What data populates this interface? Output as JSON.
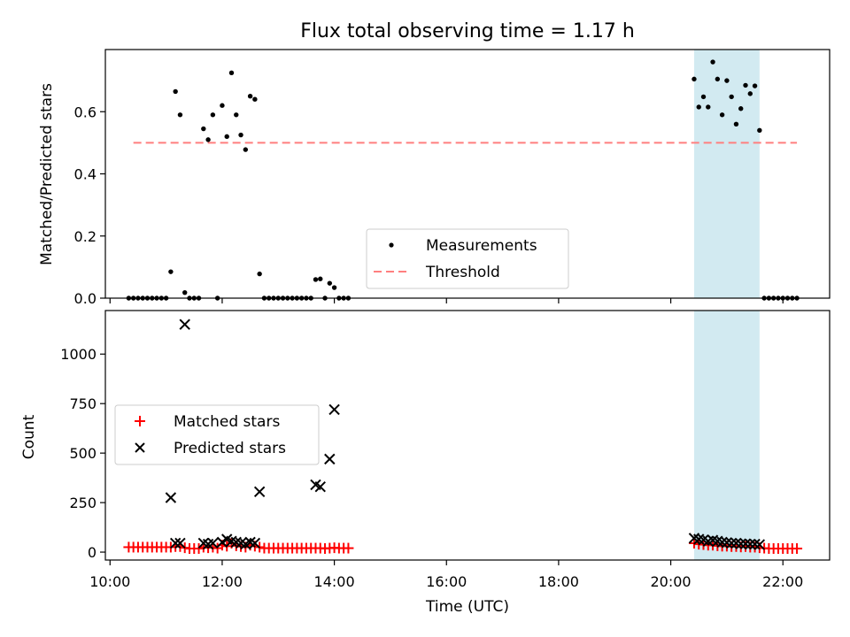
{
  "chart_data": {
    "title": "Flux total observing time = 1.17 h",
    "shaded_interval": {
      "start": "20:25",
      "end": "21:35",
      "color": "#add8e6"
    },
    "xlabel": "Time (UTC)",
    "xlim": [
      "09:55",
      "22:50"
    ],
    "x_ticks": [
      "10:00",
      "12:00",
      "14:00",
      "16:00",
      "18:00",
      "20:00",
      "22:00"
    ],
    "top": {
      "type": "scatter",
      "ylabel": "Matched/Predicted stars",
      "ylim": [
        0,
        0.8
      ],
      "y_ticks": [
        "0.0",
        "0.2",
        "0.4",
        "0.6"
      ],
      "threshold": {
        "name": "Threshold",
        "value": 0.5,
        "start": "10:25",
        "end": "22:15",
        "color": "#ff7f7f"
      },
      "series": [
        {
          "name": "Measurements",
          "color": "#000000",
          "points": [
            [
              "10:20",
              0
            ],
            [
              "10:25",
              0
            ],
            [
              "10:30",
              0
            ],
            [
              "10:35",
              0
            ],
            [
              "10:40",
              0
            ],
            [
              "10:45",
              0
            ],
            [
              "10:50",
              0
            ],
            [
              "10:55",
              0
            ],
            [
              "11:00",
              0
            ],
            [
              "11:05",
              0.085
            ],
            [
              "11:10",
              0.665
            ],
            [
              "11:15",
              0.59
            ],
            [
              "11:20",
              0.018
            ],
            [
              "11:25",
              0
            ],
            [
              "11:30",
              0
            ],
            [
              "11:35",
              0
            ],
            [
              "11:40",
              0.545
            ],
            [
              "11:45",
              0.51
            ],
            [
              "11:50",
              0.59
            ],
            [
              "11:55",
              0
            ],
            [
              "12:00",
              0.62
            ],
            [
              "12:05",
              0.52
            ],
            [
              "12:10",
              0.725
            ],
            [
              "12:15",
              0.59
            ],
            [
              "12:20",
              0.525
            ],
            [
              "12:25",
              0.478
            ],
            [
              "12:30",
              0.65
            ],
            [
              "12:35",
              0.64
            ],
            [
              "12:40",
              0.078
            ],
            [
              "12:45",
              0
            ],
            [
              "12:50",
              0
            ],
            [
              "12:55",
              0
            ],
            [
              "13:00",
              0
            ],
            [
              "13:05",
              0
            ],
            [
              "13:10",
              0
            ],
            [
              "13:15",
              0
            ],
            [
              "13:20",
              0
            ],
            [
              "13:25",
              0
            ],
            [
              "13:30",
              0
            ],
            [
              "13:35",
              0
            ],
            [
              "13:40",
              0.06
            ],
            [
              "13:45",
              0.062
            ],
            [
              "13:50",
              0
            ],
            [
              "13:55",
              0.048
            ],
            [
              "14:00",
              0.034
            ],
            [
              "14:05",
              0
            ],
            [
              "14:10",
              0
            ],
            [
              "14:15",
              0
            ],
            [
              "20:25",
              0.705
            ],
            [
              "20:30",
              0.615
            ],
            [
              "20:35",
              0.648
            ],
            [
              "20:40",
              0.615
            ],
            [
              "20:45",
              0.76
            ],
            [
              "20:50",
              0.705
            ],
            [
              "20:55",
              0.59
            ],
            [
              "21:00",
              0.7
            ],
            [
              "21:05",
              0.648
            ],
            [
              "21:10",
              0.56
            ],
            [
              "21:15",
              0.61
            ],
            [
              "21:20",
              0.685
            ],
            [
              "21:25",
              0.658
            ],
            [
              "21:30",
              0.683
            ],
            [
              "21:35",
              0.54
            ],
            [
              "21:40",
              0
            ],
            [
              "21:45",
              0
            ],
            [
              "21:50",
              0
            ],
            [
              "21:55",
              0
            ],
            [
              "22:00",
              0
            ],
            [
              "22:05",
              0
            ],
            [
              "22:10",
              0
            ],
            [
              "22:15",
              0
            ]
          ]
        }
      ],
      "legend": {
        "placement": "lower-center",
        "entries": [
          "Measurements",
          "Threshold"
        ]
      }
    },
    "bottom": {
      "type": "scatter",
      "ylabel": "Count",
      "ylim": [
        -40,
        1220
      ],
      "y_ticks": [
        "0",
        "250",
        "500",
        "750",
        "1000"
      ],
      "series": [
        {
          "name": "Matched stars",
          "marker": "+",
          "color": "#ff0000",
          "points": [
            [
              "10:20",
              25
            ],
            [
              "10:25",
              25
            ],
            [
              "10:30",
              25
            ],
            [
              "10:35",
              25
            ],
            [
              "10:40",
              25
            ],
            [
              "10:45",
              25
            ],
            [
              "10:50",
              25
            ],
            [
              "10:55",
              25
            ],
            [
              "11:00",
              25
            ],
            [
              "11:05",
              25
            ],
            [
              "11:10",
              28
            ],
            [
              "11:15",
              28
            ],
            [
              "11:20",
              22
            ],
            [
              "11:25",
              18
            ],
            [
              "11:30",
              18
            ],
            [
              "11:35",
              18
            ],
            [
              "11:40",
              25
            ],
            [
              "11:45",
              22
            ],
            [
              "11:50",
              25
            ],
            [
              "11:55",
              20
            ],
            [
              "12:00",
              35
            ],
            [
              "12:05",
              30
            ],
            [
              "12:10",
              45
            ],
            [
              "12:15",
              32
            ],
            [
              "12:20",
              28
            ],
            [
              "12:25",
              25
            ],
            [
              "12:30",
              35
            ],
            [
              "12:35",
              30
            ],
            [
              "12:40",
              25
            ],
            [
              "12:45",
              20
            ],
            [
              "12:50",
              20
            ],
            [
              "12:55",
              20
            ],
            [
              "13:00",
              20
            ],
            [
              "13:05",
              20
            ],
            [
              "13:10",
              20
            ],
            [
              "13:15",
              20
            ],
            [
              "13:20",
              20
            ],
            [
              "13:25",
              20
            ],
            [
              "13:30",
              20
            ],
            [
              "13:35",
              20
            ],
            [
              "13:40",
              20
            ],
            [
              "13:45",
              20
            ],
            [
              "13:50",
              18
            ],
            [
              "13:55",
              20
            ],
            [
              "14:00",
              22
            ],
            [
              "14:05",
              20
            ],
            [
              "14:10",
              20
            ],
            [
              "14:15",
              20
            ],
            [
              "20:25",
              45
            ],
            [
              "20:30",
              40
            ],
            [
              "20:35",
              38
            ],
            [
              "20:40",
              35
            ],
            [
              "20:45",
              35
            ],
            [
              "20:50",
              32
            ],
            [
              "20:55",
              30
            ],
            [
              "21:00",
              30
            ],
            [
              "21:05",
              28
            ],
            [
              "21:10",
              28
            ],
            [
              "21:15",
              26
            ],
            [
              "21:20",
              28
            ],
            [
              "21:25",
              25
            ],
            [
              "21:30",
              25
            ],
            [
              "21:35",
              22
            ],
            [
              "21:40",
              20
            ],
            [
              "21:45",
              18
            ],
            [
              "21:50",
              18
            ],
            [
              "21:55",
              18
            ],
            [
              "22:00",
              18
            ],
            [
              "22:05",
              18
            ],
            [
              "22:10",
              18
            ],
            [
              "22:15",
              18
            ]
          ]
        },
        {
          "name": "Predicted stars",
          "marker": "x",
          "color": "#000000",
          "points": [
            [
              "11:05",
              275
            ],
            [
              "11:10",
              45
            ],
            [
              "11:15",
              45
            ],
            [
              "11:20",
              1150
            ],
            [
              "11:40",
              45
            ],
            [
              "11:45",
              40
            ],
            [
              "11:50",
              45
            ],
            [
              "12:00",
              50
            ],
            [
              "12:05",
              65
            ],
            [
              "12:10",
              55
            ],
            [
              "12:15",
              50
            ],
            [
              "12:20",
              45
            ],
            [
              "12:25",
              40
            ],
            [
              "12:30",
              50
            ],
            [
              "12:35",
              45
            ],
            [
              "12:40",
              305
            ],
            [
              "13:40",
              340
            ],
            [
              "13:45",
              330
            ],
            [
              "13:55",
              470
            ],
            [
              "14:00",
              720
            ],
            [
              "20:25",
              70
            ],
            [
              "20:30",
              65
            ],
            [
              "20:35",
              62
            ],
            [
              "20:40",
              55
            ],
            [
              "20:45",
              60
            ],
            [
              "20:50",
              55
            ],
            [
              "20:55",
              50
            ],
            [
              "21:00",
              48
            ],
            [
              "21:05",
              45
            ],
            [
              "21:10",
              45
            ],
            [
              "21:15",
              42
            ],
            [
              "21:20",
              42
            ],
            [
              "21:25",
              40
            ],
            [
              "21:30",
              40
            ],
            [
              "21:35",
              38
            ]
          ]
        }
      ],
      "legend": {
        "placement": "center-left",
        "entries": [
          "Matched stars",
          "Predicted stars"
        ]
      }
    }
  }
}
